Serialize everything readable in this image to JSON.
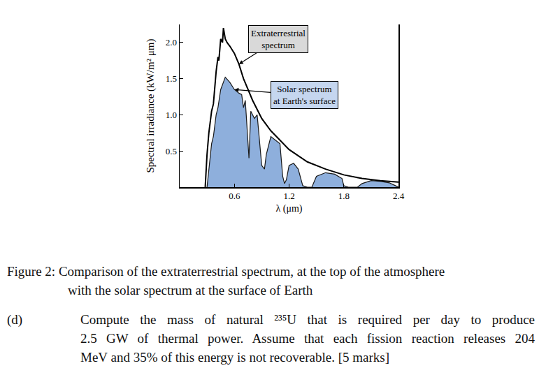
{
  "chart_data": {
    "type": "area",
    "xlabel": "λ (μm)",
    "ylabel": "Spectral irradiance (kW/m² μm)",
    "xlim": [
      0,
      2.4
    ],
    "ylim": [
      0,
      2.25
    ],
    "xticks": [
      0.6,
      1.2,
      1.8,
      2.4
    ],
    "yticks": [
      0.5,
      {
        "value": 1.0,
        "label": "1.0"
      },
      1.5,
      {
        "value": 2.0,
        "label": "2.0"
      }
    ],
    "series": [
      {
        "type": "area",
        "color": "#8eafdc",
        "x": [
          0.3,
          0.32,
          0.35,
          0.37,
          0.4,
          0.42,
          0.45,
          0.5,
          0.55,
          0.6,
          0.65,
          0.68,
          0.7,
          0.72,
          0.76,
          0.78,
          0.82,
          0.85,
          0.88,
          0.9,
          0.93,
          0.95,
          1.0,
          1.05,
          1.1,
          1.13,
          1.15,
          1.17,
          1.2,
          1.25,
          1.3,
          1.35,
          1.4,
          1.45,
          1.5,
          1.6,
          1.7,
          1.78,
          1.8,
          1.85,
          1.95,
          2.0,
          2.1,
          2.2,
          2.3,
          2.35,
          2.4
        ],
        "values": [
          0,
          0.25,
          0.6,
          0.7,
          1.0,
          1.1,
          1.35,
          1.52,
          1.45,
          1.35,
          1.3,
          1.28,
          1.1,
          1.2,
          0.4,
          1.05,
          0.95,
          1.0,
          0.6,
          0.3,
          0.25,
          0.45,
          0.7,
          0.65,
          0.6,
          0.15,
          0.05,
          0.1,
          0.3,
          0.33,
          0.25,
          0.02,
          0,
          0,
          0.15,
          0.2,
          0.18,
          0.12,
          0.02,
          0,
          0,
          0.05,
          0.09,
          0.08,
          0.06,
          0.03,
          0
        ]
      },
      {
        "type": "line",
        "color": "#000000",
        "x": [
          0.28,
          0.3,
          0.32,
          0.35,
          0.37,
          0.4,
          0.42,
          0.43,
          0.45,
          0.47,
          0.48,
          0.5,
          0.52,
          0.55,
          0.6,
          0.65,
          0.7,
          0.8,
          0.9,
          1.0,
          1.2,
          1.4,
          1.6,
          1.8,
          2.0,
          2.2,
          2.4
        ],
        "values": [
          0,
          0.45,
          0.75,
          1.05,
          1.15,
          1.6,
          1.8,
          1.75,
          2.05,
          2.0,
          2.2,
          2.05,
          2.0,
          1.95,
          1.85,
          1.7,
          1.5,
          1.2,
          0.95,
          0.78,
          0.52,
          0.35,
          0.25,
          0.17,
          0.12,
          0.09,
          0.07
        ]
      }
    ],
    "annotations": [
      "Solar spectrum\nat Earth's surface",
      "Extraterrestrial\nspectrum"
    ]
  },
  "caption": {
    "label": "Figure 2:",
    "lines": [
      "Comparison of the extraterrestrial spectrum, at the top of the atmosphere",
      "with the solar spectrum at the surface of Earth"
    ]
  },
  "question": {
    "label": "(d)",
    "lines": [
      "Compute the mass of natural ²³⁵U that is required per day to produce",
      "2.5 GW of thermal power. Assume that each fission reaction releases 204",
      "MeV and 35% of this energy is not recoverable. [5 marks]"
    ]
  }
}
